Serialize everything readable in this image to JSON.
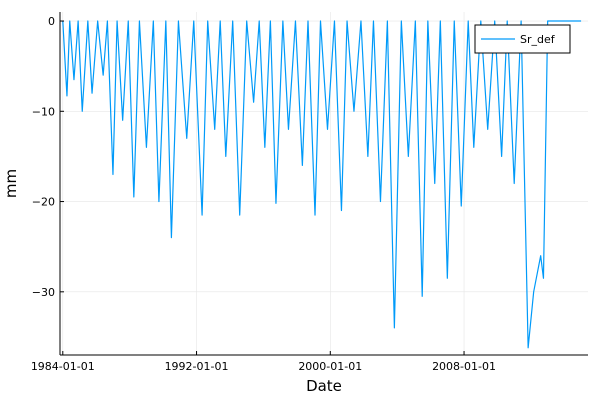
{
  "chart_data": {
    "type": "line",
    "xlabel": "Date",
    "ylabel": "mm",
    "xlim": [
      "1983-11-01",
      "2015-06-01"
    ],
    "ylim": [
      -37,
      1
    ],
    "grid": true,
    "legend_position": "top-right",
    "x_ticks": [
      "1984-01-01",
      "1992-01-01",
      "2000-01-01",
      "2008-01-01"
    ],
    "y_ticks": [
      0,
      -10,
      -20,
      -30
    ],
    "y_tick_labels": [
      "0",
      "−10",
      "−20",
      "−30"
    ],
    "series": [
      {
        "name": "Sr_def",
        "color": "#009af9",
        "x": [
          "1984-01-01",
          "1984-04-01",
          "1984-06-01",
          "1984-09-01",
          "1984-12-01",
          "1985-03-01",
          "1985-07-01",
          "1985-10-01",
          "1986-02-01",
          "1986-06-01",
          "1986-09-01",
          "1987-01-01",
          "1987-04-01",
          "1987-08-01",
          "1987-12-01",
          "1988-04-01",
          "1988-08-01",
          "1989-01-01",
          "1989-06-01",
          "1989-10-01",
          "1990-03-01",
          "1990-07-01",
          "1990-12-01",
          "1991-06-01",
          "1991-11-01",
          "1992-05-01",
          "1992-09-01",
          "1993-02-01",
          "1993-06-01",
          "1993-10-01",
          "1994-03-01",
          "1994-08-01",
          "1995-01-01",
          "1995-06-01",
          "1995-10-01",
          "1996-02-01",
          "1996-06-01",
          "1996-10-01",
          "1997-03-01",
          "1997-07-01",
          "1997-12-01",
          "1998-05-01",
          "1998-09-01",
          "1999-02-01",
          "1999-06-01",
          "1999-11-01",
          "2000-04-01",
          "2000-09-01",
          "2001-01-01",
          "2001-06-01",
          "2001-11-01",
          "2002-04-01",
          "2002-08-01",
          "2003-01-01",
          "2003-06-01",
          "2003-11-01",
          "2004-04-01",
          "2004-09-01",
          "2005-02-01",
          "2005-07-01",
          "2005-11-01",
          "2006-04-01",
          "2006-08-01",
          "2007-01-01",
          "2007-06-01",
          "2007-11-01",
          "2008-04-01",
          "2008-08-01",
          "2009-01-01",
          "2009-06-01",
          "2009-11-01",
          "2010-04-01",
          "2010-08-01",
          "2011-01-01",
          "2011-06-01",
          "2011-11-01",
          "2012-03-01",
          "2012-08-01",
          "2012-10-01",
          "2013-01-01",
          "2013-06-01",
          "2013-11-01",
          "2014-03-01",
          "2014-08-01",
          "2015-01-01"
        ],
        "values": [
          0,
          -8.3,
          0,
          -6.5,
          0,
          -10,
          0,
          -8,
          0,
          -6,
          0,
          -17,
          0,
          -11,
          0,
          -19.5,
          0,
          -14,
          0,
          -20,
          0,
          -24,
          0,
          -13,
          0,
          -21.5,
          0,
          -12,
          0,
          -15,
          0,
          -21.5,
          0,
          -9,
          0,
          -14,
          0,
          -20.2,
          0,
          -12,
          0,
          -16,
          0,
          -21.5,
          0,
          -12,
          0,
          -21,
          0,
          -10,
          0,
          -15,
          0,
          -20,
          0,
          -34,
          0,
          -15,
          0,
          -30.5,
          0,
          -18,
          0,
          -28.5,
          0,
          -20.5,
          0,
          -14,
          0,
          -12,
          0,
          -15,
          0,
          -18,
          0,
          -36.2,
          -30,
          -26,
          -28.5,
          0,
          0,
          0,
          0,
          0,
          0
        ]
      }
    ]
  }
}
